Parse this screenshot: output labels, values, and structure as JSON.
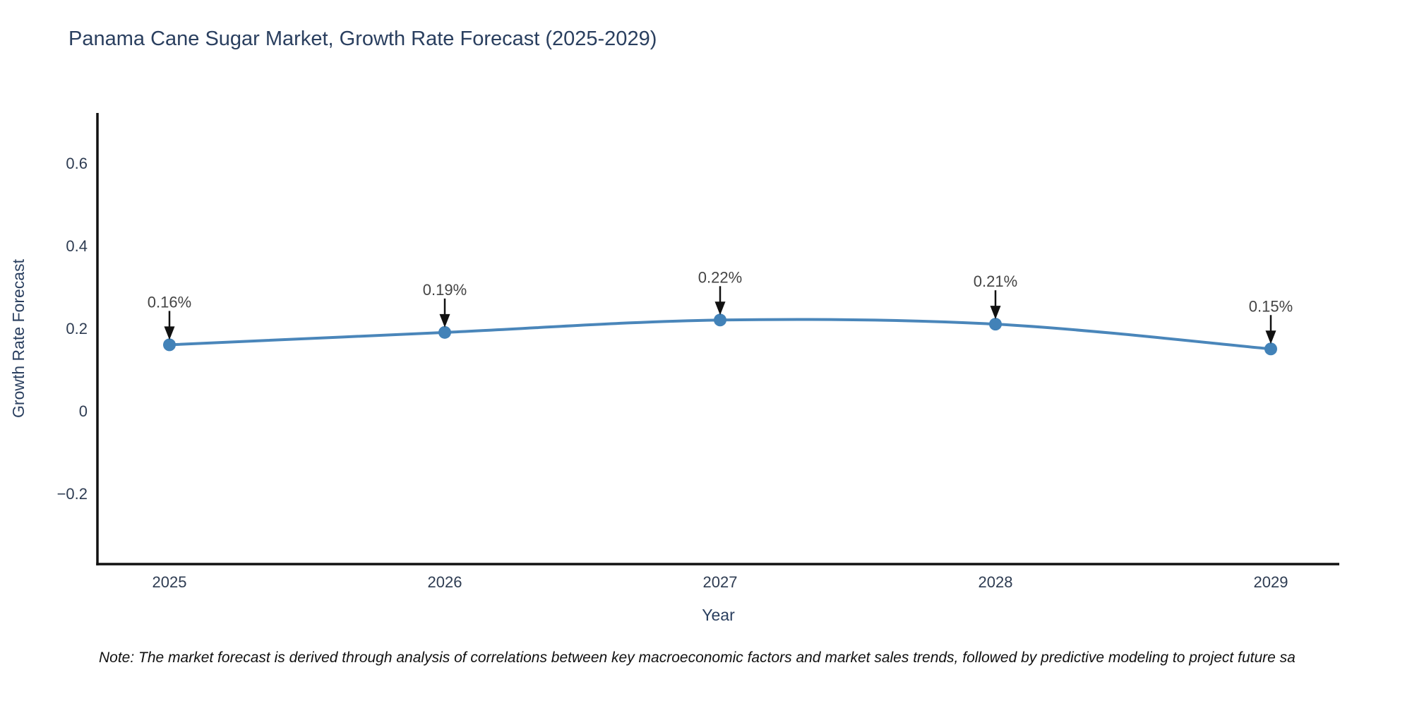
{
  "title": "Panama Cane Sugar Market, Growth Rate Forecast (2025-2029)",
  "note": "Note: The market forecast is derived through analysis of correlations between key macroeconomic factors and market sales trends, followed by predictive modeling to project future sa",
  "chart_data": {
    "type": "line",
    "title": "Panama Cane Sugar Market, Growth Rate Forecast (2025-2029)",
    "xlabel": "Year",
    "ylabel": "Growth Rate Forecast",
    "categories": [
      "2025",
      "2026",
      "2027",
      "2028",
      "2029"
    ],
    "series": [
      {
        "name": "Growth Rate Forecast",
        "values": [
          0.16,
          0.19,
          0.22,
          0.21,
          0.15
        ],
        "point_labels": [
          "0.16%",
          "0.19%",
          "0.22%",
          "0.21%",
          "0.15%"
        ]
      }
    ],
    "yticks": [
      -0.2,
      0,
      0.2,
      0.4,
      0.6
    ],
    "ytick_labels": [
      "−0.2",
      "0",
      "0.2",
      "0.4",
      "0.6"
    ],
    "ylim": [
      -0.37,
      0.72
    ],
    "grid": false,
    "legend": "none",
    "line_shape": "spline",
    "colors": {
      "line": "#4a86ba",
      "marker": "#4282b8",
      "axis": "#111111",
      "arrow": "#111111",
      "tick_label": "#2e3c52",
      "axis_title": "#2a3f5f",
      "chart_title": "#2a3f5f",
      "annotation_text": "#444444",
      "background": "#ffffff"
    }
  }
}
